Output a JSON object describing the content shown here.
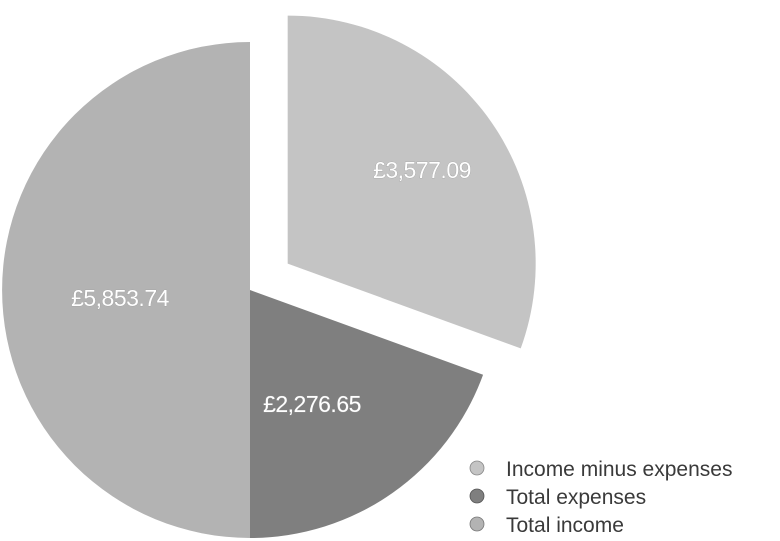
{
  "chart_data": {
    "type": "pie",
    "series": [
      {
        "name": "Income minus expenses",
        "value": 3577.09,
        "label": "£3,577.09",
        "color": "#c4c4c4",
        "exploded": true
      },
      {
        "name": "Total expenses",
        "value": 2276.65,
        "label": "£2,276.65",
        "color": "#7f7f7f",
        "exploded": false
      },
      {
        "name": "Total income",
        "value": 5853.74,
        "label": "£5,853.74",
        "color": "#b3b3b3",
        "exploded": false
      }
    ],
    "legend_position": "bottom-right",
    "legend": [
      "Income minus expenses",
      "Total expenses",
      "Total income"
    ]
  }
}
